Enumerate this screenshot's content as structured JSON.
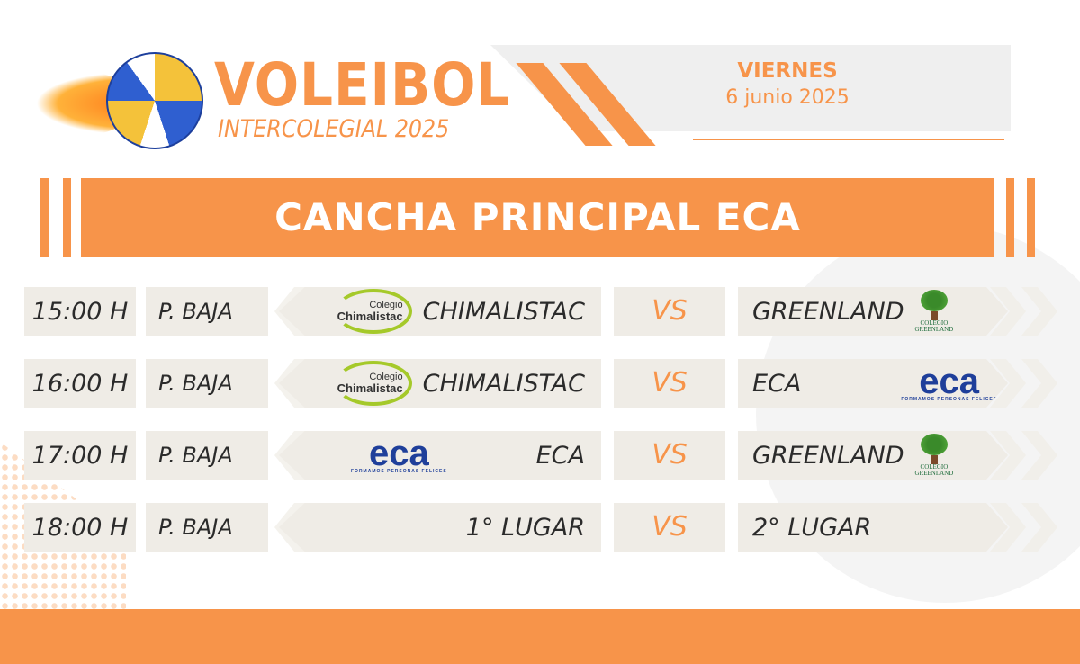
{
  "header": {
    "title": "VOLEIBOL",
    "subtitle": "INTERCOLEGIAL 2025",
    "day": "VIERNES",
    "date": "6 junio 2025"
  },
  "banner": {
    "title": "CANCHA PRINCIPAL ECA"
  },
  "logos": {
    "chimalistac": {
      "line1": "Colegio",
      "line2": "Chimalistac"
    },
    "eca": {
      "mark": "eca",
      "tagline": "FORMAMOS PERSONAS FELICES"
    },
    "greenland": {
      "line1": "COLEGIO",
      "line2": "GREENLAND"
    }
  },
  "colors": {
    "accent": "#f7944a",
    "row_bg": "#efece6",
    "text": "#2b2b2b"
  },
  "matches": [
    {
      "time": "15:00 H",
      "phase": "P. BAJA",
      "home": "CHIMALISTAC",
      "home_logo": "chimalistac",
      "vs": "VS",
      "away": "GREENLAND",
      "away_logo": "greenland"
    },
    {
      "time": "16:00 H",
      "phase": "P. BAJA",
      "home": "CHIMALISTAC",
      "home_logo": "chimalistac",
      "vs": "VS",
      "away": "ECA",
      "away_logo": "eca"
    },
    {
      "time": "17:00 H",
      "phase": "P. BAJA",
      "home": "ECA",
      "home_logo": "eca",
      "vs": "VS",
      "away": "GREENLAND",
      "away_logo": "greenland"
    },
    {
      "time": "18:00 H",
      "phase": "P. BAJA",
      "home": "1° LUGAR",
      "home_logo": null,
      "vs": "VS",
      "away": "2° LUGAR",
      "away_logo": null
    }
  ]
}
